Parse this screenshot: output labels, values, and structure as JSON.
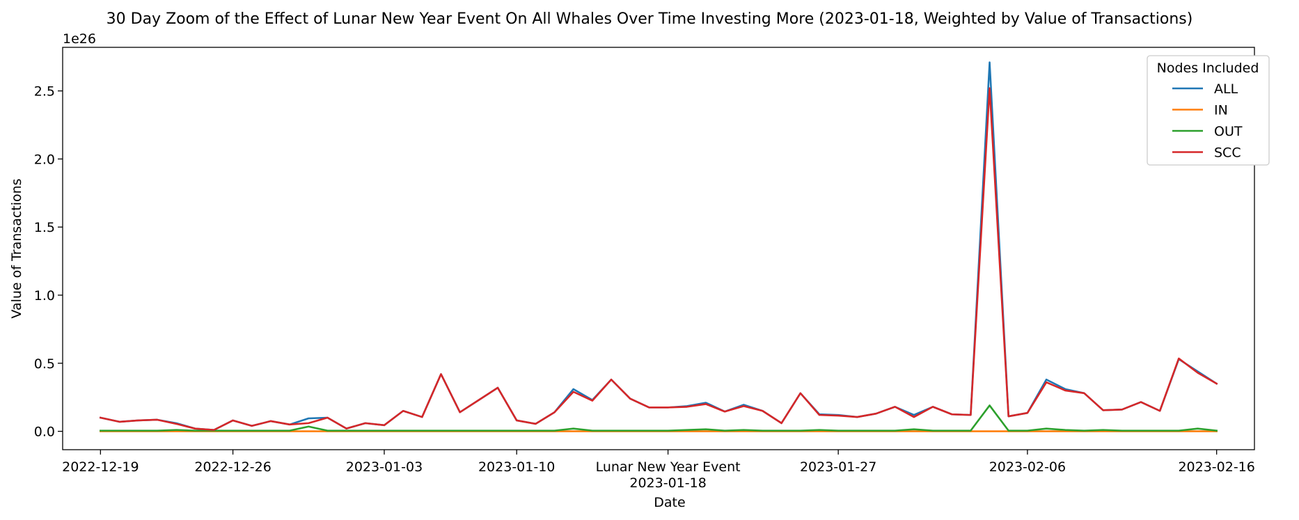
{
  "chart_data": {
    "type": "line",
    "title": "30 Day Zoom of the Effect of Lunar New Year Event On All Whales Over Time Investing More (2023-01-18, Weighted by Value of Transactions)",
    "xlabel": "Date",
    "ylabel": "Value of Transactions",
    "y_scale_label": "1e26",
    "y_unit_multiplier": 1e+26,
    "ylim": [
      -0.135,
      2.82
    ],
    "y_ticks": [
      0.0,
      0.5,
      1.0,
      1.5,
      2.0,
      2.5
    ],
    "y_tick_labels": [
      "0.0",
      "0.5",
      "1.0",
      "1.5",
      "2.0",
      "2.5"
    ],
    "x_start": "2022-12-19",
    "xlim": [
      "2022-12-17",
      "2023-02-18"
    ],
    "x_ticks": [
      {
        "date": "2022-12-19",
        "label": "2022-12-19"
      },
      {
        "date": "2022-12-26",
        "label": "2022-12-26"
      },
      {
        "date": "2023-01-03",
        "label": "2023-01-03"
      },
      {
        "date": "2023-01-10",
        "label": "2023-01-10"
      },
      {
        "date": "2023-01-18",
        "label": "Lunar New Year Event",
        "label2": "2023-01-18"
      },
      {
        "date": "2023-01-27",
        "label": "2023-01-27"
      },
      {
        "date": "2023-02-06",
        "label": "2023-02-06"
      },
      {
        "date": "2023-02-16",
        "label": "2023-02-16"
      }
    ],
    "grid": false,
    "legend": {
      "title": "Nodes Included",
      "position": "top-right"
    },
    "x": [
      "2022-12-19",
      "2022-12-20",
      "2022-12-21",
      "2022-12-22",
      "2022-12-23",
      "2022-12-24",
      "2022-12-25",
      "2022-12-26",
      "2022-12-27",
      "2022-12-28",
      "2022-12-29",
      "2022-12-30",
      "2022-12-31",
      "2023-01-01",
      "2023-01-02",
      "2023-01-03",
      "2023-01-04",
      "2023-01-05",
      "2023-01-06",
      "2023-01-07",
      "2023-01-08",
      "2023-01-09",
      "2023-01-10",
      "2023-01-11",
      "2023-01-12",
      "2023-01-13",
      "2023-01-14",
      "2023-01-15",
      "2023-01-16",
      "2023-01-17",
      "2023-01-18",
      "2023-01-19",
      "2023-01-20",
      "2023-01-21",
      "2023-01-22",
      "2023-01-23",
      "2023-01-24",
      "2023-01-25",
      "2023-01-26",
      "2023-01-27",
      "2023-01-28",
      "2023-01-29",
      "2023-01-30",
      "2023-01-31",
      "2023-02-01",
      "2023-02-02",
      "2023-02-03",
      "2023-02-04",
      "2023-02-05",
      "2023-02-06",
      "2023-02-07",
      "2023-02-08",
      "2023-02-09",
      "2023-02-10",
      "2023-02-11",
      "2023-02-12",
      "2023-02-13",
      "2023-02-14",
      "2023-02-15",
      "2023-02-16"
    ],
    "series": [
      {
        "name": "ALL",
        "color": "#1f77b4",
        "values": [
          0.1,
          0.07,
          0.08,
          0.085,
          0.06,
          0.02,
          0.01,
          0.08,
          0.04,
          0.075,
          0.05,
          0.095,
          0.1,
          0.02,
          0.06,
          0.045,
          0.15,
          0.105,
          0.42,
          0.14,
          0.23,
          0.32,
          0.08,
          0.055,
          0.14,
          0.31,
          0.23,
          0.38,
          0.24,
          0.175,
          0.175,
          0.185,
          0.21,
          0.145,
          0.195,
          0.15,
          0.06,
          0.28,
          0.125,
          0.12,
          0.105,
          0.13,
          0.18,
          0.12,
          0.18,
          0.125,
          0.12,
          2.71,
          0.11,
          0.135,
          0.38,
          0.31,
          0.28,
          0.155,
          0.16,
          0.215,
          0.15,
          0.53,
          0.44,
          0.35
        ]
      },
      {
        "name": "IN",
        "color": "#ff7f0e",
        "values": [
          0.0,
          0.0,
          0.0,
          0.0,
          0.0,
          0.0,
          0.0,
          0.0,
          0.0,
          0.0,
          0.0,
          0.0,
          0.0,
          0.0,
          0.0,
          0.0,
          0.0,
          0.0,
          0.0,
          0.0,
          0.0,
          0.0,
          0.0,
          0.0,
          0.0,
          0.0,
          0.0,
          0.0,
          0.0,
          0.0,
          0.0,
          0.0,
          0.0,
          0.0,
          0.0,
          0.0,
          0.0,
          0.0,
          0.0,
          0.0,
          0.0,
          0.0,
          0.0,
          0.0,
          0.0,
          0.0,
          0.0,
          0.0,
          0.0,
          0.0,
          0.0,
          0.0,
          0.0,
          0.0,
          0.0,
          0.0,
          0.0,
          0.0,
          0.0,
          0.0
        ]
      },
      {
        "name": "OUT",
        "color": "#2ca02c",
        "values": [
          0.005,
          0.005,
          0.005,
          0.005,
          0.01,
          0.005,
          0.005,
          0.005,
          0.005,
          0.005,
          0.005,
          0.035,
          0.005,
          0.005,
          0.005,
          0.005,
          0.005,
          0.005,
          0.005,
          0.005,
          0.005,
          0.005,
          0.005,
          0.005,
          0.005,
          0.02,
          0.005,
          0.005,
          0.005,
          0.005,
          0.005,
          0.01,
          0.015,
          0.005,
          0.01,
          0.005,
          0.005,
          0.005,
          0.01,
          0.005,
          0.005,
          0.005,
          0.005,
          0.015,
          0.005,
          0.005,
          0.005,
          0.19,
          0.005,
          0.005,
          0.02,
          0.01,
          0.005,
          0.01,
          0.005,
          0.005,
          0.005,
          0.005,
          0.02,
          0.005
        ]
      },
      {
        "name": "SCC",
        "color": "#d62728",
        "values": [
          0.1,
          0.07,
          0.08,
          0.085,
          0.055,
          0.02,
          0.01,
          0.08,
          0.04,
          0.075,
          0.05,
          0.06,
          0.1,
          0.02,
          0.06,
          0.045,
          0.15,
          0.105,
          0.42,
          0.14,
          0.23,
          0.32,
          0.08,
          0.055,
          0.14,
          0.29,
          0.225,
          0.38,
          0.24,
          0.175,
          0.175,
          0.18,
          0.2,
          0.145,
          0.185,
          0.15,
          0.06,
          0.28,
          0.12,
          0.115,
          0.105,
          0.13,
          0.18,
          0.105,
          0.18,
          0.125,
          0.12,
          2.52,
          0.11,
          0.135,
          0.36,
          0.3,
          0.28,
          0.155,
          0.16,
          0.215,
          0.15,
          0.535,
          0.43,
          0.35
        ]
      }
    ]
  }
}
